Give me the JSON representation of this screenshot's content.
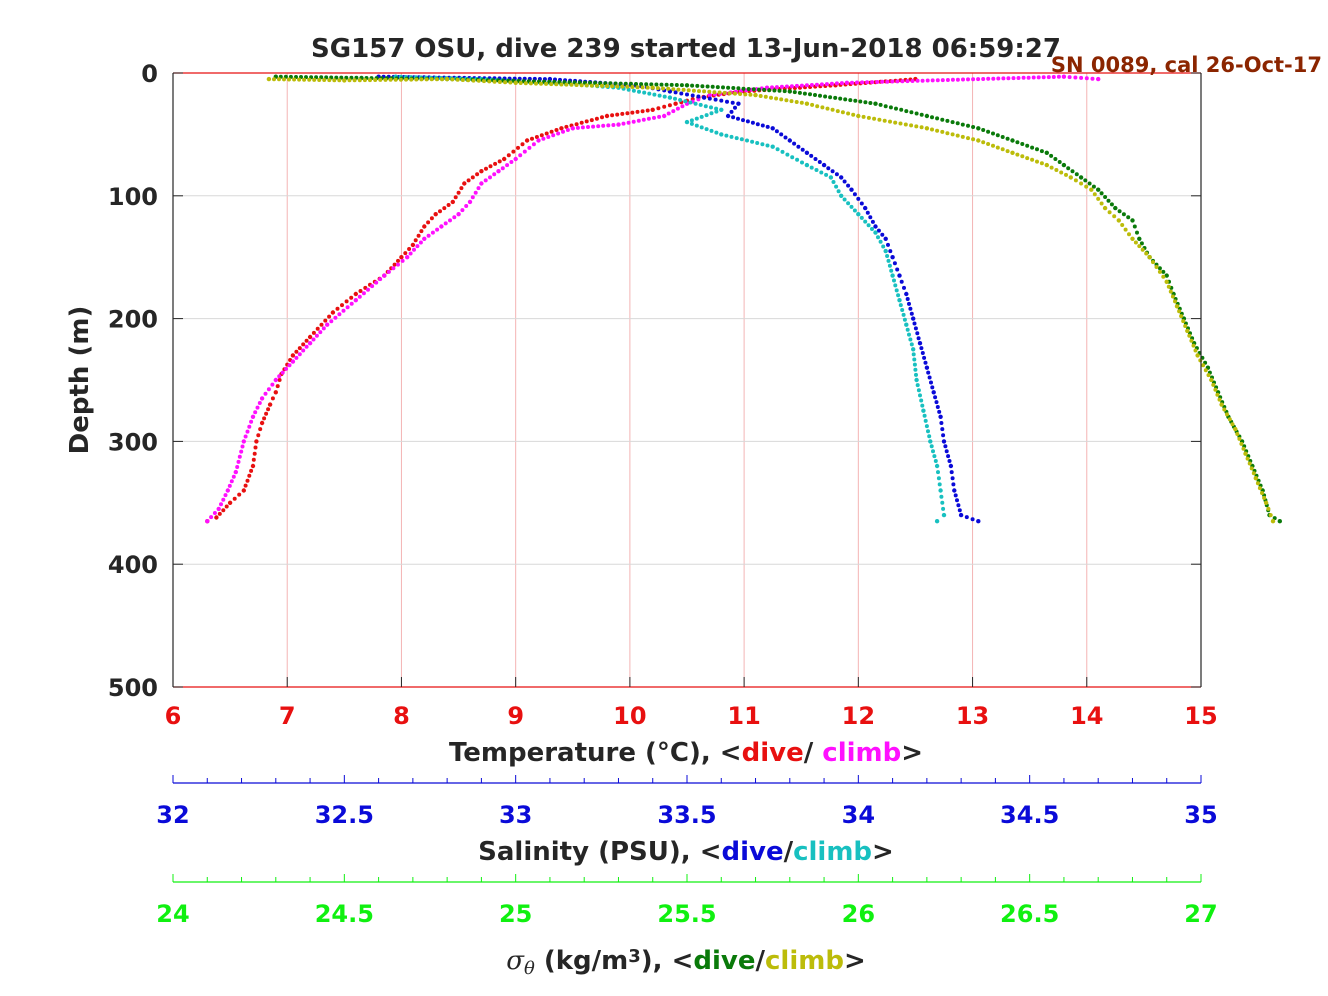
{
  "title": "SG157 OSU, dive 239 started 13-Jun-2018 06:59:27",
  "annotation": "SN 0089, cal 26-Oct-17",
  "colors": {
    "temp_dive": "#e81010",
    "temp_climb": "#ff10ff",
    "sal_dive": "#0a0ad8",
    "sal_climb": "#18c0c0",
    "sig_dive": "#0a7a0a",
    "sig_climb": "#bcbc0a",
    "temp_axis": "#e81010",
    "sal_axis": "#0a0ad8",
    "sig_axis": "#10f010",
    "text": "#262626",
    "grid_temp": "#f4b4b4",
    "grid_depth": "#d8d8d8"
  },
  "chart_data": {
    "type": "scatter",
    "y_axis": {
      "label": "Depth (m)",
      "lim": [
        0,
        500
      ],
      "reversed": true,
      "ticks": [
        "0",
        "100",
        "200",
        "300",
        "400",
        "500"
      ]
    },
    "x_axes": [
      {
        "key": "temperature",
        "lim": [
          6,
          15
        ],
        "ticks": [
          "6",
          "7",
          "8",
          "9",
          "10",
          "11",
          "12",
          "13",
          "14",
          "15"
        ],
        "label_parts": [
          {
            "text": "Temperature (°C), <",
            "color": "text"
          },
          {
            "text": "dive",
            "color": "temp_dive"
          },
          {
            "text": "/ ",
            "color": "text"
          },
          {
            "text": "climb",
            "color": "temp_climb"
          },
          {
            "text": ">",
            "color": "text"
          }
        ]
      },
      {
        "key": "salinity",
        "lim": [
          32,
          35
        ],
        "ticks": [
          "32",
          "32.5",
          "33",
          "33.5",
          "34",
          "34.5",
          "35"
        ],
        "label_parts": [
          {
            "text": "Salinity (PSU), <",
            "color": "text"
          },
          {
            "text": "dive",
            "color": "sal_dive"
          },
          {
            "text": "/",
            "color": "text"
          },
          {
            "text": "climb",
            "color": "sal_climb"
          },
          {
            "text": ">",
            "color": "text"
          }
        ]
      },
      {
        "key": "sigma_theta",
        "lim": [
          24,
          27
        ],
        "ticks": [
          "24",
          "24.5",
          "25",
          "25.5",
          "26",
          "26.5",
          "27"
        ],
        "label_parts": [
          {
            "text": "σ",
            "color": "text",
            "italic": true
          },
          {
            "text": "θ",
            "color": "text",
            "italic": true,
            "sub": true
          },
          {
            "text": " (kg/m",
            "color": "text"
          },
          {
            "text": "3",
            "color": "text",
            "sup": true
          },
          {
            "text": "), <",
            "color": "text"
          },
          {
            "text": "dive",
            "color": "sig_dive"
          },
          {
            "text": "/",
            "color": "text"
          },
          {
            "text": "climb",
            "color": "sig_climb"
          },
          {
            "text": ">",
            "color": "text"
          }
        ]
      }
    ],
    "grid": true,
    "series": [
      {
        "name": "dive",
        "axis": "temperature",
        "color": "temp_dive",
        "points": [
          [
            12.5,
            5
          ],
          [
            11.8,
            10
          ],
          [
            11.0,
            15
          ],
          [
            10.6,
            20
          ],
          [
            10.4,
            25
          ],
          [
            10.2,
            30
          ],
          [
            9.8,
            35
          ],
          [
            9.4,
            45
          ],
          [
            9.1,
            55
          ],
          [
            8.9,
            70
          ],
          [
            8.7,
            80
          ],
          [
            8.55,
            90
          ],
          [
            8.45,
            105
          ],
          [
            8.3,
            115
          ],
          [
            8.2,
            125
          ],
          [
            8.1,
            140
          ],
          [
            8.0,
            150
          ],
          [
            7.85,
            165
          ],
          [
            7.6,
            180
          ],
          [
            7.4,
            195
          ],
          [
            7.2,
            215
          ],
          [
            7.05,
            230
          ],
          [
            6.95,
            245
          ],
          [
            6.9,
            260
          ],
          [
            6.85,
            270
          ],
          [
            6.78,
            285
          ],
          [
            6.73,
            300
          ],
          [
            6.7,
            320
          ],
          [
            6.62,
            340
          ],
          [
            6.5,
            350
          ],
          [
            6.38,
            362
          ],
          [
            6.3,
            365
          ]
        ]
      },
      {
        "name": "climb",
        "axis": "temperature",
        "color": "temp_climb",
        "points": [
          [
            14.1,
            5
          ],
          [
            13.8,
            3
          ],
          [
            11.9,
            8
          ],
          [
            11.2,
            12
          ],
          [
            10.7,
            18
          ],
          [
            10.5,
            25
          ],
          [
            10.3,
            35
          ],
          [
            9.9,
            42
          ],
          [
            9.5,
            45
          ],
          [
            9.2,
            55
          ],
          [
            9.0,
            70
          ],
          [
            8.85,
            80
          ],
          [
            8.7,
            90
          ],
          [
            8.6,
            105
          ],
          [
            8.5,
            115
          ],
          [
            8.35,
            125
          ],
          [
            8.2,
            135
          ],
          [
            8.05,
            150
          ],
          [
            7.85,
            165
          ],
          [
            7.6,
            185
          ],
          [
            7.35,
            205
          ],
          [
            7.2,
            220
          ],
          [
            7.05,
            235
          ],
          [
            6.9,
            250
          ],
          [
            6.78,
            265
          ],
          [
            6.7,
            280
          ],
          [
            6.62,
            300
          ],
          [
            6.55,
            325
          ],
          [
            6.48,
            340
          ],
          [
            6.4,
            355
          ],
          [
            6.3,
            365
          ]
        ]
      },
      {
        "name": "dive",
        "axis": "salinity",
        "color": "sal_dive",
        "points": [
          [
            32.6,
            3
          ],
          [
            33.1,
            5
          ],
          [
            33.35,
            10
          ],
          [
            33.45,
            15
          ],
          [
            33.55,
            20
          ],
          [
            33.65,
            25
          ],
          [
            33.62,
            35
          ],
          [
            33.75,
            45
          ],
          [
            33.8,
            55
          ],
          [
            33.85,
            65
          ],
          [
            33.9,
            75
          ],
          [
            33.95,
            85
          ],
          [
            33.98,
            95
          ],
          [
            34.02,
            110
          ],
          [
            34.05,
            125
          ],
          [
            34.08,
            135
          ],
          [
            34.1,
            150
          ],
          [
            34.12,
            165
          ],
          [
            34.14,
            180
          ],
          [
            34.16,
            200
          ],
          [
            34.18,
            220
          ],
          [
            34.2,
            240
          ],
          [
            34.22,
            260
          ],
          [
            34.24,
            280
          ],
          [
            34.25,
            300
          ],
          [
            34.27,
            320
          ],
          [
            34.28,
            340
          ],
          [
            34.3,
            360
          ],
          [
            34.35,
            365
          ]
        ]
      },
      {
        "name": "climb",
        "axis": "salinity",
        "color": "sal_climb",
        "points": [
          [
            32.65,
            3
          ],
          [
            32.9,
            5
          ],
          [
            33.1,
            8
          ],
          [
            33.3,
            12
          ],
          [
            33.45,
            20
          ],
          [
            33.6,
            30
          ],
          [
            33.5,
            40
          ],
          [
            33.6,
            50
          ],
          [
            33.75,
            60
          ],
          [
            33.85,
            75
          ],
          [
            33.92,
            85
          ],
          [
            33.95,
            100
          ],
          [
            34.0,
            115
          ],
          [
            34.05,
            130
          ],
          [
            34.08,
            145
          ],
          [
            34.1,
            165
          ],
          [
            34.12,
            185
          ],
          [
            34.14,
            205
          ],
          [
            34.16,
            225
          ],
          [
            34.17,
            250
          ],
          [
            34.19,
            275
          ],
          [
            34.21,
            300
          ],
          [
            34.23,
            320
          ],
          [
            34.24,
            340
          ],
          [
            34.25,
            360
          ],
          [
            34.23,
            365
          ]
        ]
      },
      {
        "name": "dive",
        "axis": "sigma_theta",
        "color": "sig_dive",
        "points": [
          [
            24.3,
            3
          ],
          [
            24.55,
            4
          ],
          [
            24.8,
            5
          ],
          [
            25.5,
            10
          ],
          [
            25.8,
            15
          ],
          [
            26.05,
            25
          ],
          [
            26.2,
            35
          ],
          [
            26.35,
            45
          ],
          [
            26.45,
            55
          ],
          [
            26.55,
            65
          ],
          [
            26.6,
            75
          ],
          [
            26.65,
            85
          ],
          [
            26.7,
            95
          ],
          [
            26.75,
            110
          ],
          [
            26.8,
            120
          ],
          [
            26.82,
            135
          ],
          [
            26.85,
            150
          ],
          [
            26.9,
            165
          ],
          [
            26.92,
            180
          ],
          [
            26.95,
            200
          ],
          [
            26.98,
            220
          ],
          [
            27.02,
            240
          ],
          [
            27.05,
            260
          ],
          [
            27.08,
            280
          ],
          [
            27.12,
            300
          ],
          [
            27.15,
            320
          ],
          [
            27.18,
            340
          ],
          [
            27.2,
            360
          ],
          [
            27.23,
            365
          ]
        ]
      },
      {
        "name": "climb",
        "axis": "sigma_theta",
        "color": "sig_climb",
        "points": [
          [
            24.28,
            5
          ],
          [
            24.5,
            6
          ],
          [
            24.8,
            5
          ],
          [
            25.0,
            8
          ],
          [
            25.4,
            12
          ],
          [
            25.7,
            18
          ],
          [
            25.85,
            25
          ],
          [
            26.0,
            35
          ],
          [
            26.2,
            45
          ],
          [
            26.35,
            55
          ],
          [
            26.45,
            65
          ],
          [
            26.55,
            75
          ],
          [
            26.62,
            85
          ],
          [
            26.68,
            95
          ],
          [
            26.72,
            110
          ],
          [
            26.76,
            120
          ],
          [
            26.8,
            135
          ],
          [
            26.85,
            150
          ],
          [
            26.9,
            170
          ],
          [
            26.93,
            190
          ],
          [
            26.96,
            210
          ],
          [
            26.99,
            230
          ],
          [
            27.03,
            250
          ],
          [
            27.06,
            270
          ],
          [
            27.1,
            290
          ],
          [
            27.13,
            310
          ],
          [
            27.16,
            330
          ],
          [
            27.19,
            350
          ],
          [
            27.21,
            365
          ]
        ]
      }
    ]
  }
}
